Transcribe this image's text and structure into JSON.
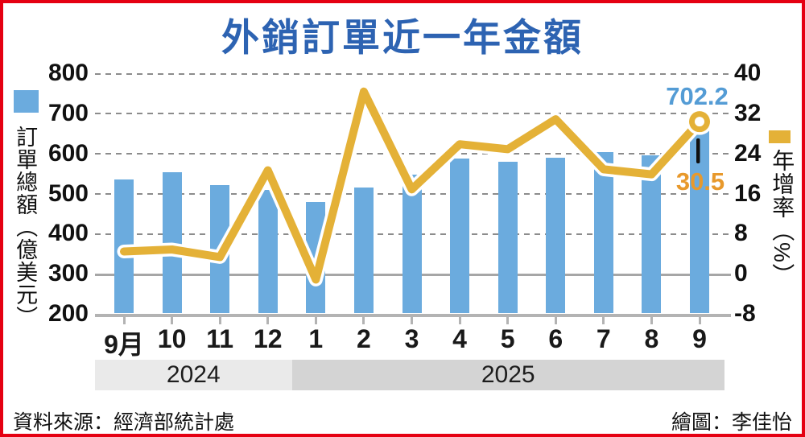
{
  "title": "外銷訂單近一年金額",
  "legend": {
    "bars_label": "訂單總額（億美元）",
    "line_label": "年增率（%）"
  },
  "annotations": {
    "last_amount": "702.2",
    "last_growth": "30.5"
  },
  "year_bands": [
    {
      "label": "2024",
      "months": 4
    },
    {
      "label": "2025",
      "months": 9
    }
  ],
  "source": "資料來源：經濟部統計處",
  "credit": "繪圖：李佳怡",
  "colors": {
    "border_red": "#e50012",
    "title_blue": "#2d63b2",
    "bar_blue": "#6babde",
    "line_yellow": "#e4b137",
    "amount_label_blue": "#549cd5",
    "growth_label_orange": "#e8992c",
    "band_2024_gray": "#eaeaea",
    "band_2025_gray": "#d4d4d4"
  },
  "chart_data": {
    "type": "bar+line",
    "title": "外銷訂單近一年金額",
    "categories": [
      "9月",
      "10",
      "11",
      "12",
      "1",
      "2",
      "3",
      "4",
      "5",
      "6",
      "7",
      "8",
      "9"
    ],
    "series": [
      {
        "name": "訂單總額（億美元）",
        "type": "bar",
        "axis": "left",
        "values": [
          538,
          555,
          524,
          512,
          480,
          517,
          549,
          589,
          581,
          592,
          605,
          597,
          702.2
        ]
      },
      {
        "name": "年增率（%）",
        "type": "line",
        "axis": "right",
        "values": [
          4.6,
          5,
          3.5,
          20.8,
          -1,
          36.5,
          17,
          26,
          25,
          31,
          21,
          20,
          30.5
        ]
      }
    ],
    "left_axis": {
      "label": "訂單總額（億美元）",
      "ticks": [
        800,
        700,
        600,
        500,
        400,
        300,
        200
      ],
      "range": [
        200,
        800
      ]
    },
    "right_axis": {
      "label": "年增率（%）",
      "ticks": [
        40,
        32,
        24,
        16,
        8,
        0,
        -8
      ],
      "range": [
        -8,
        40
      ]
    },
    "grid": "dashed horizontal, solid line at right-axis 0",
    "legend_position": "left and right of plot",
    "point_annotations": [
      {
        "category": "9",
        "year": "2025",
        "amount": 702.2,
        "growth_pct": 30.5
      }
    ]
  }
}
